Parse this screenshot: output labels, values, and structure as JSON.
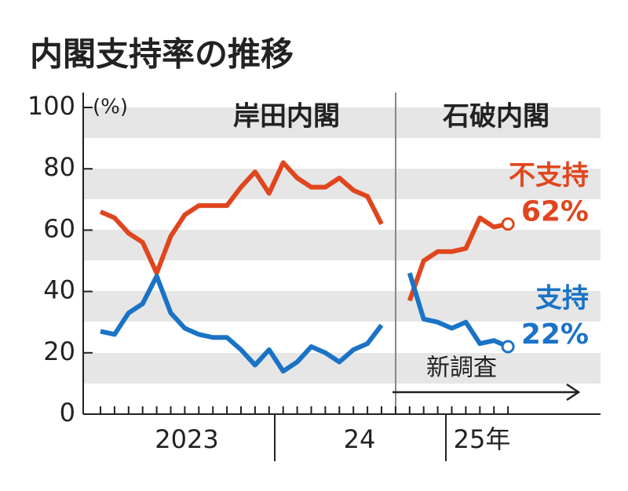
{
  "chart_data": {
    "type": "line",
    "title": "内閣支持率の推移",
    "y_unit": "(%)",
    "annotations": [
      "岸田内閣",
      "石破内閣",
      "新調査"
    ],
    "x_labels": [
      "2023",
      "24",
      "25年"
    ],
    "categories": [
      null,
      null,
      null,
      null,
      null,
      null,
      null,
      null,
      null,
      null,
      null,
      null,
      null,
      null,
      null,
      null,
      null,
      null,
      null,
      null,
      null,
      null,
      null,
      null,
      null,
      null,
      null,
      null,
      null,
      null
    ],
    "series": [
      {
        "name": "不支持",
        "color": "#e0461e",
        "values": [
          66,
          64,
          59,
          56,
          46,
          58,
          65,
          68,
          68,
          68,
          74,
          79,
          72,
          82,
          77,
          74,
          74,
          77,
          73,
          71,
          62,
          null,
          37,
          50,
          53,
          53,
          54,
          64,
          61,
          62
        ],
        "value_labels": [
          null,
          null,
          null,
          null,
          null,
          null,
          null,
          null,
          null,
          null,
          null,
          null,
          null,
          null,
          null,
          null,
          null,
          null,
          null,
          null,
          null,
          null,
          null,
          null,
          null,
          null,
          null,
          null,
          null,
          "62%"
        ]
      },
      {
        "name": "支持",
        "color": "#1a73c6",
        "values": [
          27,
          26,
          33,
          36,
          45,
          33,
          28,
          26,
          25,
          25,
          21,
          16,
          21,
          14,
          17,
          22,
          20,
          17,
          21,
          23,
          29,
          null,
          46,
          31,
          30,
          28,
          30,
          23,
          24,
          22
        ],
        "value_labels": [
          null,
          null,
          null,
          null,
          null,
          null,
          null,
          null,
          null,
          null,
          null,
          null,
          null,
          null,
          null,
          null,
          null,
          null,
          null,
          null,
          null,
          null,
          null,
          null,
          null,
          null,
          null,
          null,
          null,
          "22%"
        ]
      }
    ],
    "ylim": [
      0,
      100
    ],
    "yticks": [
      0,
      20,
      40,
      60,
      80,
      100
    ],
    "grid": false
  }
}
